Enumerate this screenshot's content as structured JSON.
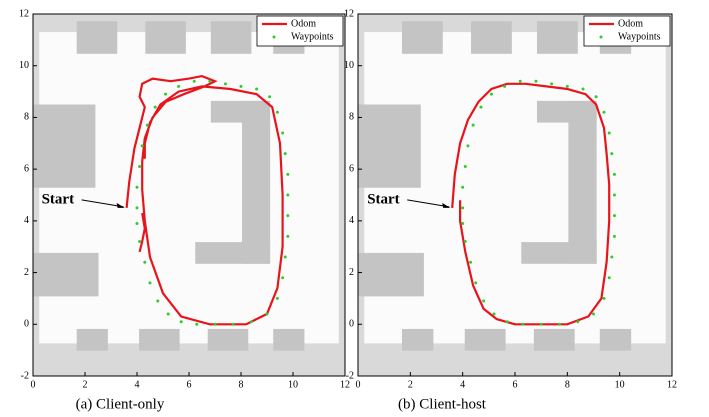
{
  "chart_data": [
    {
      "type": "line",
      "caption": "(a) Client-only",
      "annotation": "Start",
      "xlim": [
        0,
        12
      ],
      "ylim": [
        -2,
        12
      ],
      "xticks": [
        0,
        2,
        4,
        6,
        8,
        10,
        12
      ],
      "yticks": [
        -2,
        0,
        2,
        4,
        6,
        8,
        10,
        12
      ],
      "legend": "upper right",
      "series": [
        {
          "name": "Odom",
          "color": "#e8141c",
          "style": "line",
          "x": [
            3.6,
            3.7,
            3.9,
            4.1,
            4.3,
            4.1,
            4.2,
            4.6,
            5.3,
            6.0,
            6.5,
            7.0,
            6.6,
            5.8,
            5.1,
            4.6,
            4.3,
            4.2,
            4.2,
            4.3,
            4.5,
            5.0,
            5.7,
            6.8,
            8.2,
            9.0,
            9.4,
            9.6,
            9.6,
            9.5,
            9.2,
            8.6,
            7.6,
            6.5,
            5.6,
            4.9,
            4.5,
            4.3,
            4.3,
            null,
            4.2,
            4.3,
            4.2,
            4.1
          ],
          "values": [
            4.5,
            5.5,
            6.8,
            7.6,
            8.4,
            8.8,
            9.3,
            9.5,
            9.4,
            9.5,
            9.6,
            9.4,
            9.2,
            8.9,
            8.6,
            8.0,
            7.2,
            6.3,
            5.2,
            4.0,
            2.6,
            1.2,
            0.3,
            0.0,
            0.0,
            0.4,
            1.4,
            3.0,
            5.0,
            7.0,
            8.4,
            8.9,
            9.1,
            9.2,
            9.0,
            8.5,
            7.8,
            7.0,
            6.4,
            null,
            4.3,
            3.7,
            3.2,
            2.8
          ]
        },
        {
          "name": "Waypoints",
          "color": "#2ecc2e",
          "style": "dots",
          "x": [
            4.0,
            4.0,
            4.1,
            4.2,
            4.4,
            4.7,
            5.1,
            5.6,
            6.2,
            6.8,
            7.4,
            8.0,
            8.6,
            9.1,
            9.4,
            9.6,
            9.7,
            9.8,
            9.8,
            9.8,
            9.8,
            9.7,
            9.6,
            9.4,
            9.0,
            8.4,
            7.7,
            7.0,
            6.3,
            5.7,
            5.2,
            4.8,
            4.5,
            4.3,
            4.1,
            4.0
          ],
          "values": [
            4.5,
            5.3,
            6.1,
            6.9,
            7.7,
            8.4,
            8.9,
            9.2,
            9.4,
            9.4,
            9.3,
            9.2,
            9.1,
            8.8,
            8.2,
            7.4,
            6.6,
            5.8,
            5.0,
            4.2,
            3.4,
            2.6,
            1.8,
            1.0,
            0.4,
            0.1,
            0.0,
            0.0,
            0.0,
            0.1,
            0.4,
            0.9,
            1.6,
            2.4,
            3.2,
            3.9
          ]
        }
      ]
    },
    {
      "type": "line",
      "caption": "(b) Client-host",
      "annotation": "Start",
      "xlim": [
        0,
        12
      ],
      "ylim": [
        -2,
        12
      ],
      "xticks": [
        0,
        2,
        4,
        6,
        8,
        10,
        12
      ],
      "yticks": [
        -2,
        0,
        2,
        4,
        6,
        8,
        10,
        12
      ],
      "legend": "upper right",
      "series": [
        {
          "name": "Odom",
          "color": "#e8141c",
          "style": "line",
          "x": [
            3.6,
            3.7,
            3.9,
            4.2,
            4.6,
            5.1,
            5.7,
            6.4,
            7.2,
            8.0,
            8.7,
            9.1,
            9.4,
            9.5,
            9.6,
            9.6,
            9.5,
            9.3,
            8.8,
            8.0,
            7.0,
            6.0,
            5.3,
            4.8,
            4.4,
            4.1,
            3.9,
            3.9
          ],
          "values": [
            4.5,
            5.8,
            7.0,
            7.9,
            8.6,
            9.1,
            9.3,
            9.3,
            9.2,
            9.1,
            8.9,
            8.5,
            7.6,
            6.6,
            5.4,
            4.0,
            2.4,
            1.0,
            0.3,
            0.0,
            0.0,
            0.0,
            0.2,
            0.6,
            1.5,
            2.8,
            4.0,
            4.8
          ]
        },
        {
          "name": "Waypoints",
          "color": "#2ecc2e",
          "style": "dots",
          "x": [
            4.0,
            4.0,
            4.1,
            4.2,
            4.4,
            4.7,
            5.1,
            5.6,
            6.2,
            6.8,
            7.4,
            8.0,
            8.6,
            9.1,
            9.4,
            9.6,
            9.7,
            9.8,
            9.8,
            9.8,
            9.8,
            9.7,
            9.6,
            9.4,
            9.0,
            8.4,
            7.7,
            7.0,
            6.3,
            5.7,
            5.2,
            4.8,
            4.5,
            4.3,
            4.1,
            4.0
          ],
          "values": [
            4.5,
            5.3,
            6.1,
            6.9,
            7.7,
            8.4,
            8.9,
            9.2,
            9.4,
            9.4,
            9.3,
            9.2,
            9.1,
            8.8,
            8.2,
            7.4,
            6.6,
            5.8,
            5.0,
            4.2,
            3.4,
            2.6,
            1.8,
            1.0,
            0.4,
            0.1,
            0.0,
            0.0,
            0.0,
            0.1,
            0.4,
            0.9,
            1.6,
            2.4,
            3.2,
            3.9
          ]
        }
      ]
    }
  ]
}
